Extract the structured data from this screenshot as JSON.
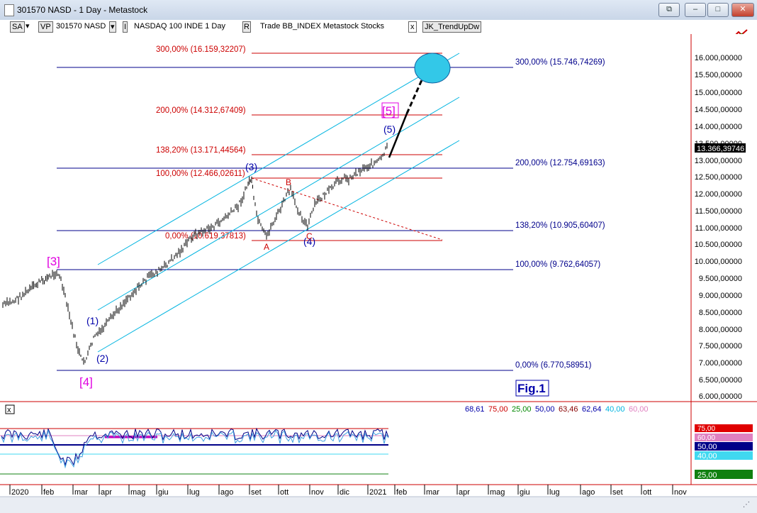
{
  "window": {
    "title": "301570 NASD - 1 Day - Metastock",
    "buttons": {
      "restore": "⧉",
      "minimize": "–",
      "maximize": "□",
      "close": "✕"
    }
  },
  "toolbar": {
    "sa": "SA",
    "vp": "VP",
    "symbol": "301570 NASD",
    "index": "NASDAQ 100 INDE  1 Day",
    "r_label": "R",
    "trade": "Trade  BB_INDEX  Metastock  Stocks",
    "x_label": "x",
    "expert": "JK_TrendUpDw"
  },
  "colors": {
    "candles": "#000000",
    "fib_red": "#cc0000",
    "fib_blue": "#00008b",
    "channel": "#00b4e0",
    "wave_magenta": "#e000e0",
    "wave_blue": "#0000aa",
    "wave_red": "#cc0000",
    "target": "#33c8e8"
  },
  "price_axis": {
    "ticks": [
      "16.000,00000",
      "15.500,00000",
      "15.000,00000",
      "14.500,00000",
      "14.000,00000",
      "13.500,00000",
      "13.000,00000",
      "12.500,00000",
      "12.000,00000",
      "11.500,00000",
      "11.000,00000",
      "10.500,00000",
      "10.000,00000",
      "9.500,00000",
      "9.000,00000",
      "8.500,00000",
      "8.000,00000",
      "7.500,00000",
      "7.000,00000",
      "6.500,00000",
      "6.000,00000"
    ],
    "current_value": "13.366,39746"
  },
  "fib_labels_red": [
    "300,00% (16.159,32207)",
    "200,00% (14.312,67409)",
    "138,20% (13.171,44564)",
    "100,00% (12.466,02611)",
    "0,00% (10.619,37813)"
  ],
  "fib_labels_blue": [
    "300,00% (15.746,74269)",
    "200,00% (12.754,69163)",
    "138,20% (10.905,60407)",
    "100,00% (9.762,64057)",
    "0,00% (6.770,58951)"
  ],
  "wave_labels": {
    "major_3": "[3]",
    "major_4": "[4]",
    "major_5": "[5]",
    "w1": "(1)",
    "w2": "(2)",
    "w3": "(3)",
    "w4": "(4)",
    "w5": "(5)",
    "a": "A",
    "b": "B",
    "c": "C"
  },
  "figure_label": "Fig.1",
  "oscillator": {
    "close_icon": "x",
    "readouts": [
      {
        "text": "68,61",
        "color": "#0000aa"
      },
      {
        "text": "75,00",
        "color": "#cc0000"
      },
      {
        "text": "25,00",
        "color": "#008800"
      },
      {
        "text": "50,00",
        "color": "#0000aa"
      },
      {
        "text": "63,46",
        "color": "#880000"
      },
      {
        "text": "62,64",
        "color": "#0000aa"
      },
      {
        "text": "40,00",
        "color": "#00b4e0"
      },
      {
        "text": "60,00",
        "color": "#e080c0"
      }
    ],
    "axis_badges": [
      {
        "text": "75,00",
        "color": "#e00000"
      },
      {
        "text": "60,00",
        "color": "#e080c0"
      },
      {
        "text": "50,00",
        "color": "#000088"
      },
      {
        "text": "40,00",
        "color": "#40d8f0"
      },
      {
        "text": "25,00",
        "color": "#108010"
      }
    ]
  },
  "time_axis": [
    "2020",
    "feb",
    "mar",
    "apr",
    "mag",
    "giu",
    "lug",
    "ago",
    "set",
    "ott",
    "nov",
    "dic",
    "2021",
    "feb",
    "mar",
    "apr",
    "mag",
    "giu",
    "lug",
    "ago",
    "set",
    "ott",
    "nov"
  ]
}
